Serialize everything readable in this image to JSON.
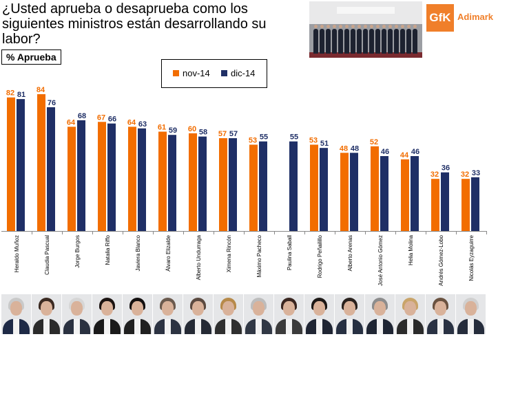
{
  "header": {
    "title": "¿Usted aprueba o desaprueba como los siguientes ministros están desarrollando su labor?",
    "badge": "% Aprueba",
    "logo_mark": "GfK",
    "logo_brand": "Adimark"
  },
  "colors": {
    "nov": "#f26d00",
    "dic": "#1f2f66",
    "axis": "#888888"
  },
  "chart_data": {
    "type": "bar",
    "title": "¿Usted aprueba o desaprueba como los siguientes ministros están desarrollando su labor?",
    "ylabel": "% Aprueba",
    "ylim": [
      0,
      90
    ],
    "legend_position": "top-center",
    "grid": false,
    "categories": [
      "Heraldo Muñoz",
      "Claudia Pascual",
      "Jorge Burgos",
      "Natalia Riffo",
      "Javiera Blanco",
      "Álvaro Elizalde",
      "Alberto Undurraga",
      "Ximena Rincón",
      "Máximo Pacheco",
      "Paulina Saball",
      "Rodrigo Peñailillo",
      "Alberto Arenas",
      "José Antonio Gómez",
      "Helia Molina",
      "Andrés Gómez-Lobo",
      "Nicolás Eyzaguirre"
    ],
    "series": [
      {
        "name": "nov-14",
        "values": [
          82,
          84,
          64,
          67,
          64,
          61,
          60,
          57,
          53,
          null,
          53,
          48,
          52,
          44,
          32,
          32
        ]
      },
      {
        "name": "dic-14",
        "values": [
          81,
          76,
          68,
          66,
          63,
          59,
          58,
          57,
          55,
          55,
          51,
          48,
          46,
          46,
          36,
          33
        ]
      }
    ]
  },
  "portraits": [
    {
      "name": "Heraldo Muñoz",
      "hair": "#c9c9c9",
      "attire": "#1e2a46"
    },
    {
      "name": "Claudia Pascual",
      "hair": "#3b2a22",
      "attire": "#2b2b2b"
    },
    {
      "name": "Jorge Burgos",
      "hair": "#d6d6d6",
      "attire": "#2a3140"
    },
    {
      "name": "Natalia Riffo",
      "hair": "#1c1412",
      "attire": "#1a1a1a"
    },
    {
      "name": "Javiera Blanco",
      "hair": "#141010",
      "attire": "#202020"
    },
    {
      "name": "Álvaro Elizalde",
      "hair": "#6b5a4e",
      "attire": "#2c3342"
    },
    {
      "name": "Alberto Undurraga",
      "hair": "#5b4a40",
      "attire": "#252a35"
    },
    {
      "name": "Ximena Rincón",
      "hair": "#b78a4a",
      "attire": "#2f2f2f"
    },
    {
      "name": "Máximo Pacheco",
      "hair": "#bdbdbd",
      "attire": "#313845"
    },
    {
      "name": "Paulina Saball",
      "hair": "#3a2620",
      "attire": "#3b3b3b"
    },
    {
      "name": "Rodrigo Peñailillo",
      "hair": "#1c1816",
      "attire": "#1f2533"
    },
    {
      "name": "Alberto Arenas",
      "hair": "#2a221e",
      "attire": "#273042"
    },
    {
      "name": "José Antonio Gómez",
      "hair": "#8d8d8d",
      "attire": "#202634"
    },
    {
      "name": "Helia Molina",
      "hair": "#c9a46a",
      "attire": "#2b2b2b"
    },
    {
      "name": "Andrés Gómez-Lobo",
      "hair": "#6a5240",
      "attire": "#2a3243"
    },
    {
      "name": "Nicolás Eyzaguirre",
      "hair": "#d0d0d0",
      "attire": "#262d3c"
    }
  ]
}
